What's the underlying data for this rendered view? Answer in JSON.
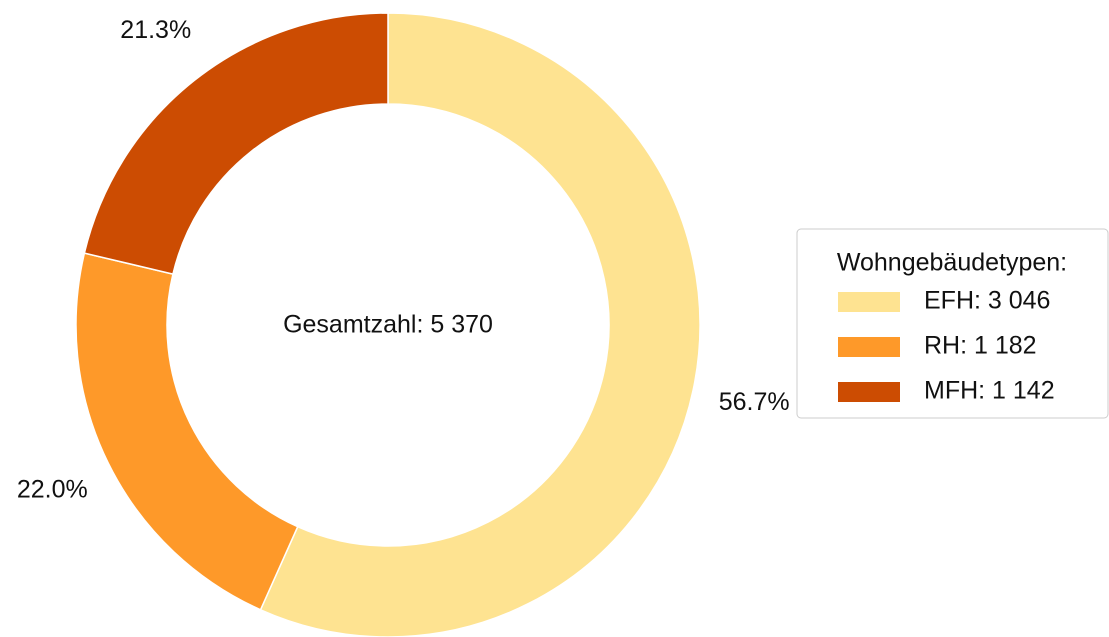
{
  "chart_data": {
    "type": "donut",
    "center_text": "Gesamtzahl: 5 370",
    "legend_title": "Wohngebäudetypen:",
    "categories": [
      "EFH: 3 046",
      "RH: 1 182",
      "MFH: 1 142"
    ],
    "values": [
      56.7,
      22.0,
      21.3
    ],
    "value_labels": [
      "56.7%",
      "22.0%",
      "21.3%"
    ],
    "colors": [
      "#fee391",
      "#fe9929",
      "#cc4c02"
    ],
    "legend": "right"
  }
}
